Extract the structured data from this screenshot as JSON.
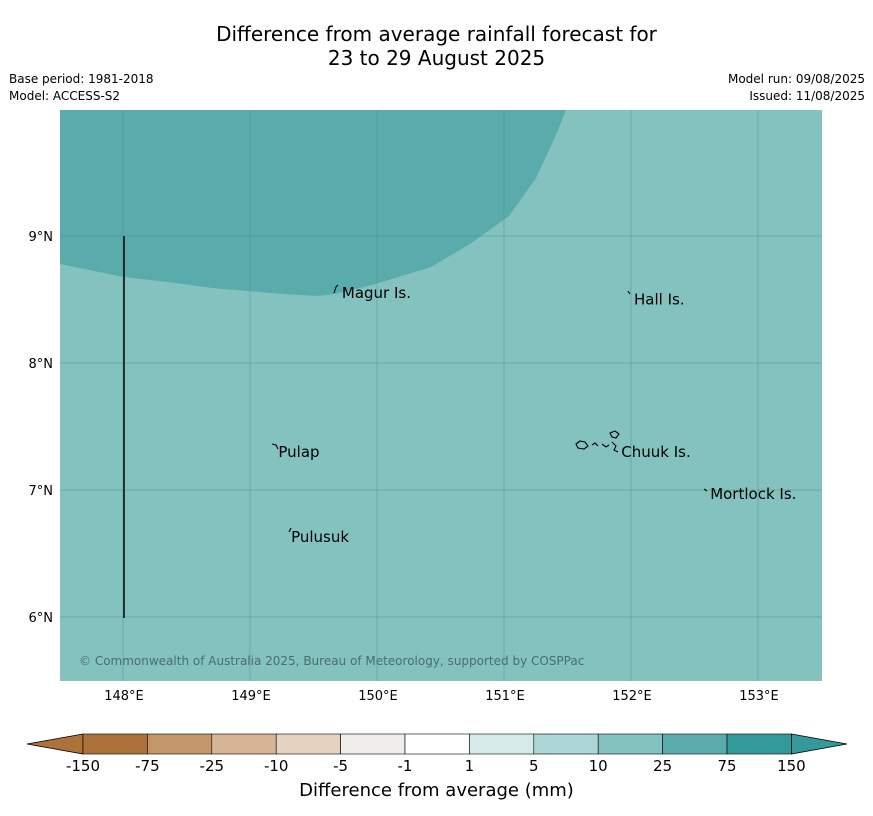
{
  "header": {
    "title_line1": "Difference from average rainfall forecast for",
    "title_line2": "23 to 29 August 2025",
    "base_period": "Base period: 1981-2018",
    "model": "Model: ACCESS-S2",
    "model_run": "Model run: 09/08/2025",
    "issued": "Issued: 11/08/2025"
  },
  "map": {
    "lon_ticks": [
      "148°E",
      "149°E",
      "150°E",
      "151°E",
      "152°E",
      "153°E"
    ],
    "lat_ticks": [
      "9°N",
      "8°N",
      "7°N",
      "6°N"
    ],
    "places": [
      {
        "name": "Magur Is.",
        "lon": 149.7,
        "lat": 8.55
      },
      {
        "name": "Hall Is.",
        "lon": 152.0,
        "lat": 8.5
      },
      {
        "name": "Pulap",
        "lon": 149.2,
        "lat": 7.3
      },
      {
        "name": "Chuuk Is.",
        "lon": 151.9,
        "lat": 7.3
      },
      {
        "name": "Mortlock Is.",
        "lon": 152.6,
        "lat": 6.97
      },
      {
        "name": "Pulusuk",
        "lon": 149.3,
        "lat": 6.63
      }
    ],
    "colors": {
      "category_10_25": "#84c2c0",
      "category_25_75": "#5aabab"
    },
    "copyright": "© Commonwealth of Australia 2025, Bureau of Meteorology, supported by COSPPac"
  },
  "colorbar": {
    "labels": [
      "-150",
      "-75",
      "-25",
      "-10",
      "-5",
      "-1",
      "1",
      "5",
      "10",
      "25",
      "75",
      "150"
    ],
    "colors": [
      "#ad723a",
      "#c4976b",
      "#d5b595",
      "#e6d2c1",
      "#efeeea",
      "#ffffff",
      "#d6ebe9",
      "#acd7d6",
      "#84c2c0",
      "#5aabab",
      "#33999a"
    ],
    "low_color": "#ad723a",
    "high_color": "#33999a",
    "label": "Difference from average (mm)"
  }
}
